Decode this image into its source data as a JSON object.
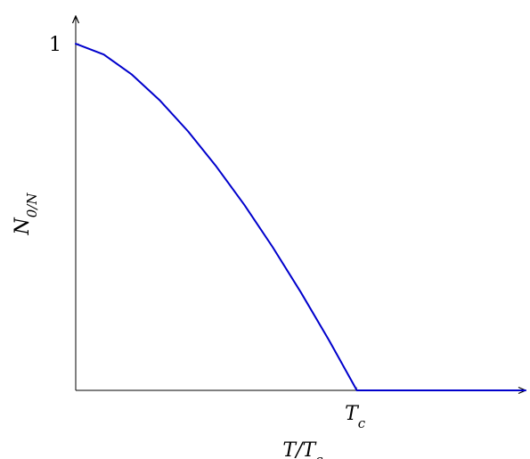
{
  "chart_data": {
    "type": "line",
    "title": "",
    "xlabel": "T/T_c",
    "ylabel": "N_0/N",
    "xlim": [
      0,
      1.6
    ],
    "ylim": [
      0,
      1.08
    ],
    "grid": false,
    "x_ticks": [
      {
        "value": 1,
        "label": "T_c"
      }
    ],
    "y_ticks": [
      {
        "value": 1,
        "label": "1"
      }
    ],
    "series": [
      {
        "color": "#0000cc",
        "x": [
          0,
          0.1,
          0.2,
          0.3,
          0.4,
          0.5,
          0.6,
          0.7,
          0.8,
          0.9,
          1.0,
          1.2,
          1.4,
          1.6
        ],
        "y": [
          1,
          0.969,
          0.911,
          0.836,
          0.747,
          0.646,
          0.535,
          0.414,
          0.284,
          0.146,
          0,
          0,
          0,
          0
        ]
      }
    ]
  }
}
